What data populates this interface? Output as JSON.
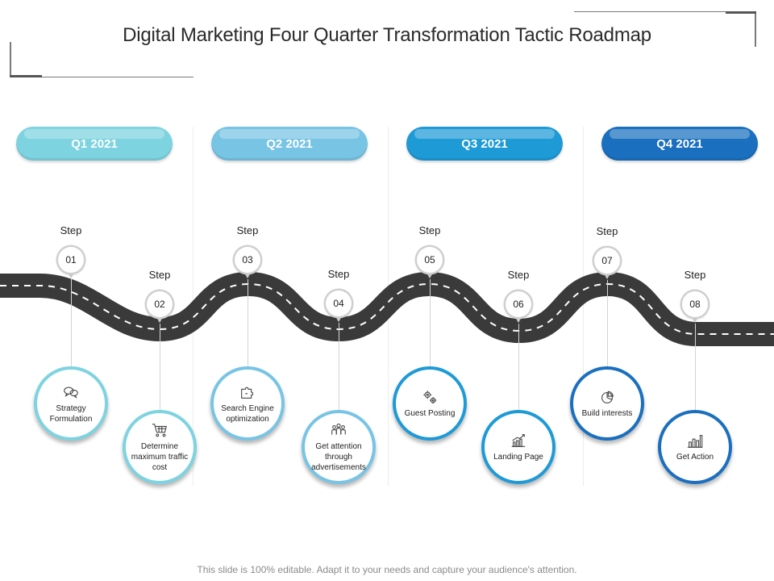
{
  "title": "Digital Marketing Four Quarter Transformation Tactic Roadmap",
  "quarters": [
    {
      "label": "Q1 2021",
      "color": "#7dd3e0"
    },
    {
      "label": "Q2 2021",
      "color": "#78c4e4"
    },
    {
      "label": "Q3 2021",
      "color": "#1e9ad6"
    },
    {
      "label": "Q4 2021",
      "color": "#1a6fbe"
    }
  ],
  "step_word": "Step",
  "steps": [
    {
      "number": "01",
      "label": "Strategy Formulation",
      "icon": "chat-bubbles-icon",
      "ring_color": "#7dd3e0"
    },
    {
      "number": "02",
      "label": "Determine maximum traffic cost",
      "icon": "shopping-cart-icon",
      "ring_color": "#7dd3e0"
    },
    {
      "number": "03",
      "label": "Search Engine optimization",
      "icon": "puzzle-icon",
      "ring_color": "#78c4e4"
    },
    {
      "number": "04",
      "label": "Get attention through advertisements",
      "icon": "people-group-icon",
      "ring_color": "#78c4e4"
    },
    {
      "number": "05",
      "label": "Guest Posting",
      "icon": "gears-icon",
      "ring_color": "#1e9ad6"
    },
    {
      "number": "06",
      "label": "Landing Page",
      "icon": "rising-chart-icon",
      "ring_color": "#1e9ad6"
    },
    {
      "number": "07",
      "label": "Build interests",
      "icon": "pie-chart-icon",
      "ring_color": "#1a6fbe"
    },
    {
      "number": "08",
      "label": "Get Action",
      "icon": "bar-chart-icon",
      "ring_color": "#1a6fbe"
    }
  ],
  "footer": "This slide is 100% editable. Adapt it to your needs and capture your audience's attention."
}
